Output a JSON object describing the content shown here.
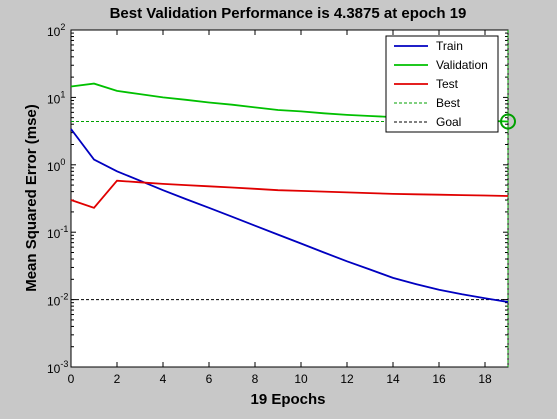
{
  "chart_data": {
    "type": "line",
    "title": "Best Validation Performance is 4.3875 at epoch 19",
    "xlabel": "19 Epochs",
    "ylabel": "Mean Squared Error  (mse)",
    "xlim": [
      0,
      19
    ],
    "ylim": [
      0.001,
      100
    ],
    "yscale": "log",
    "grid": false,
    "legend_position": "top-right",
    "x_ticks": [
      0,
      2,
      4,
      6,
      8,
      10,
      12,
      14,
      16,
      18
    ],
    "x_tick_labels": [
      "0",
      "2",
      "4",
      "6",
      "8",
      "10",
      "12",
      "14",
      "16",
      "18"
    ],
    "y_ticks": [
      {
        "value": 100,
        "base": "10",
        "exp": "2"
      },
      {
        "value": 10,
        "base": "10",
        "exp": "1"
      },
      {
        "value": 1,
        "base": "10",
        "exp": "0"
      },
      {
        "value": 0.1,
        "base": "10",
        "exp": "-1"
      },
      {
        "value": 0.01,
        "base": "10",
        "exp": "-2"
      },
      {
        "value": 0.001,
        "base": "10",
        "exp": "-3"
      }
    ],
    "x": [
      0,
      1,
      2,
      3,
      4,
      5,
      6,
      7,
      8,
      9,
      10,
      11,
      12,
      13,
      14,
      15,
      16,
      17,
      18,
      19
    ],
    "series": [
      {
        "name": "Train",
        "color": "#0000c0",
        "dash": "solid",
        "values": [
          3.4,
          1.2,
          0.8,
          0.58,
          0.42,
          0.31,
          0.23,
          0.17,
          0.125,
          0.092,
          0.068,
          0.05,
          0.037,
          0.028,
          0.021,
          0.017,
          0.014,
          0.012,
          0.0105,
          0.0092
        ]
      },
      {
        "name": "Validation",
        "color": "#00c000",
        "dash": "solid",
        "values": [
          14.5,
          16,
          12.5,
          11.2,
          10,
          9.2,
          8.4,
          7.8,
          7.1,
          6.5,
          6.2,
          5.8,
          5.5,
          5.3,
          5.1,
          4.95,
          4.8,
          4.65,
          4.5,
          4.3875
        ]
      },
      {
        "name": "Test",
        "color": "#e00000",
        "dash": "solid",
        "values": [
          0.3,
          0.23,
          0.58,
          0.55,
          0.52,
          0.5,
          0.48,
          0.46,
          0.44,
          0.42,
          0.41,
          0.4,
          0.39,
          0.38,
          0.37,
          0.365,
          0.36,
          0.355,
          0.35,
          0.345
        ]
      }
    ],
    "best": {
      "name": "Best",
      "color": "#00a000",
      "dash": "dashed",
      "epoch": 19,
      "value": 4.3875
    },
    "goal": {
      "name": "Goal",
      "color": "#000000",
      "dash": "dashed",
      "value": 0.01
    }
  }
}
